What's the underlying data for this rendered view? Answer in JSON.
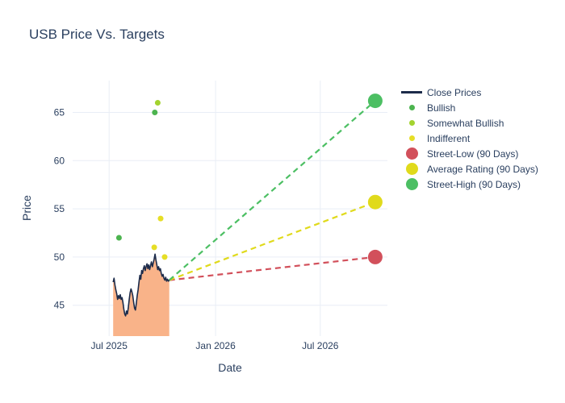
{
  "chart": {
    "title": "USB Price Vs. Targets",
    "x_axis_label": "Date",
    "y_axis_label": "Price"
  },
  "colors": {
    "text": "#2a3f5f",
    "grid": "#e9eef6",
    "background": "#ffffff"
  },
  "legend": {
    "items": [
      {
        "label": "Close Prices",
        "swatch": "line",
        "color": "#1c2b4a"
      },
      {
        "label": "Bullish",
        "swatch": "dot-small",
        "color": "#4cb44f"
      },
      {
        "label": "Somewhat Bullish",
        "swatch": "dot-small",
        "color": "#a3d32f"
      },
      {
        "label": "Indifferent",
        "swatch": "dot-small",
        "color": "#e6de26"
      },
      {
        "label": "Street-Low (90 Days)",
        "swatch": "dot-large",
        "color": "#d2505b"
      },
      {
        "label": "Average Rating (90 Days)",
        "swatch": "dot-large",
        "color": "#e0da1c"
      },
      {
        "label": "Street-High (90 Days)",
        "swatch": "dot-large",
        "color": "#4cbf63"
      }
    ]
  },
  "chart_data": {
    "type": "line",
    "title": "USB Price Vs. Targets",
    "xlabel": "Date",
    "ylabel": "Price",
    "grid": true,
    "legend_position": "right",
    "x_unit": "days since 2025-07-01",
    "x_range_days": [
      -63,
      481
    ],
    "ylim": [
      41.8,
      68.3
    ],
    "y_ticks": [
      45,
      50,
      55,
      60,
      65
    ],
    "x_ticks": [
      {
        "label": "Jul 2025",
        "day": 0
      },
      {
        "label": "Jan 2026",
        "day": 184
      },
      {
        "label": "Jul 2026",
        "day": 365
      }
    ],
    "close_prices": {
      "name": "Close Prices",
      "start_day": 7,
      "end_day": 104,
      "line_color": "#1c2b4a",
      "fill_color": "#f9b389",
      "fill_opacity": 1,
      "values": [
        47.4,
        47.8,
        47.1,
        46.6,
        46.2,
        45.6,
        46.0,
        45.7,
        46.1,
        45.6,
        45.8,
        45.3,
        44.6,
        44.1,
        43.9,
        44.4,
        44.1,
        44.7,
        45.6,
        46.3,
        46.7,
        46.4,
        46.0,
        45.3,
        44.7,
        44.5,
        45.2,
        46.0,
        46.6,
        47.4,
        48.1,
        47.7,
        48.6,
        48.3,
        48.8,
        49.1,
        48.6,
        49.0,
        49.3,
        48.8,
        49.2,
        48.7,
        49.1,
        49.5,
        49.0,
        49.4,
        49.8,
        50.3,
        49.7,
        49.2,
        48.7,
        49.0,
        48.6,
        48.8,
        48.3,
        48.0,
        48.2,
        47.8,
        47.6,
        47.9,
        47.5,
        47.7,
        47.5,
        47.6
      ]
    },
    "ratings": [
      {
        "name": "Bullish",
        "color": "#4cb44f",
        "points": [
          {
            "day": 17,
            "price": 52.0
          },
          {
            "day": 79,
            "price": 65.0
          }
        ]
      },
      {
        "name": "Somewhat Bullish",
        "color": "#a3d32f",
        "points": [
          {
            "day": 84,
            "price": 66.0
          }
        ]
      },
      {
        "name": "Indifferent",
        "color": "#e6de26",
        "points": [
          {
            "day": 78,
            "price": 51.0
          },
          {
            "day": 89,
            "price": 54.0
          },
          {
            "day": 96,
            "price": 50.0
          }
        ]
      }
    ],
    "target_lines_from": {
      "day": 104,
      "price": 47.6
    },
    "targets": [
      {
        "name": "Street-Low (90 Days)",
        "color": "#d2505b",
        "day": 460,
        "price": 50.0
      },
      {
        "name": "Average Rating (90 Days)",
        "color": "#e0da1c",
        "day": 460,
        "price": 55.7
      },
      {
        "name": "Street-High (90 Days)",
        "color": "#4cbf63",
        "day": 460,
        "price": 66.2
      }
    ]
  }
}
